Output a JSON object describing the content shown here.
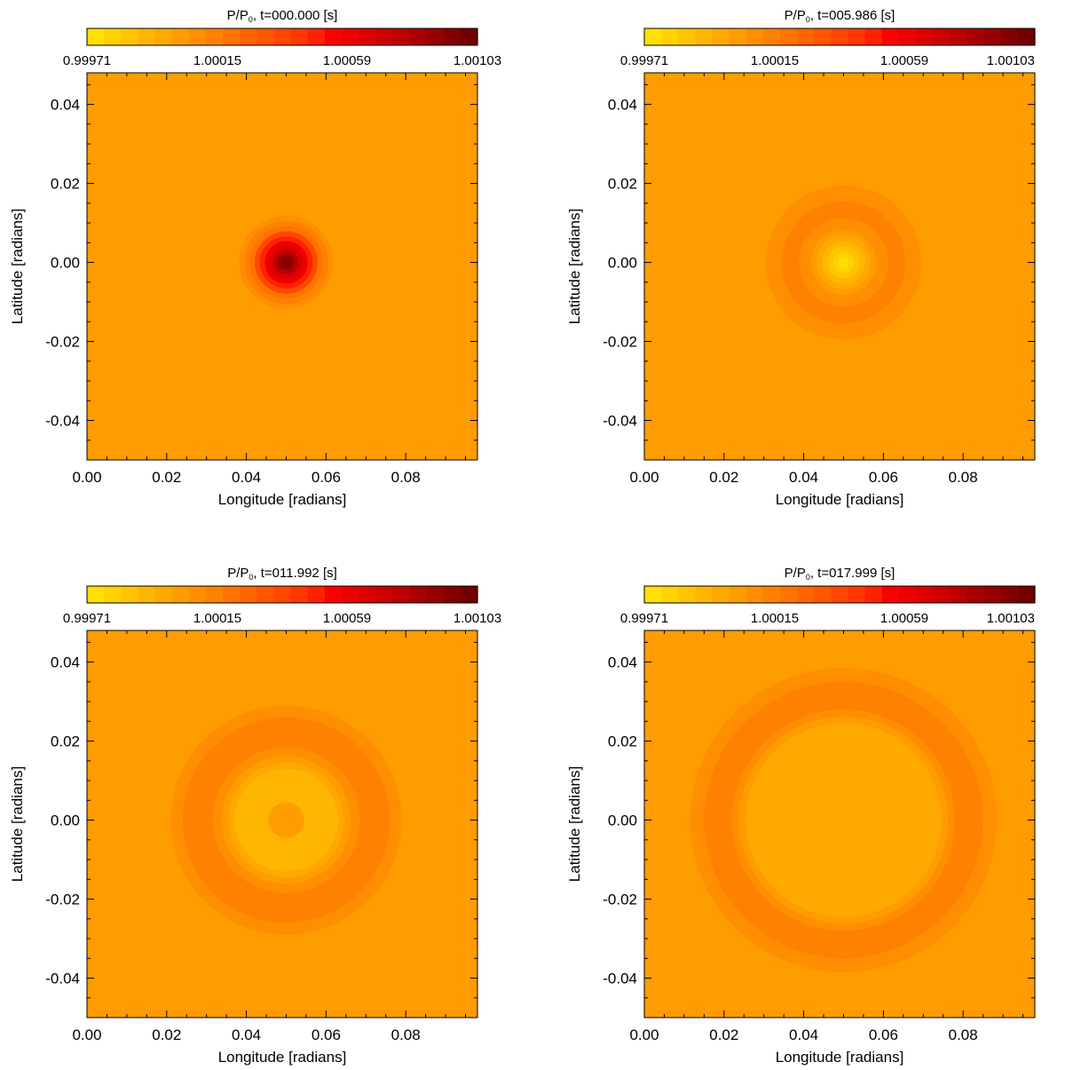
{
  "chart_data": [
    {
      "type": "heatmap",
      "title_prefix": "P/P",
      "title_sub": "0",
      "title_suffix": ", t=000.000  [s]",
      "xlabel": "Longitude [radians]",
      "ylabel": "Latitude [radians]",
      "xlim": [
        0.0,
        0.098
      ],
      "ylim": [
        -0.05,
        0.048
      ],
      "xticks": [
        "0.00",
        "0.02",
        "0.04",
        "0.06",
        "0.08"
      ],
      "xtick_values": [
        0.0,
        0.02,
        0.04,
        0.06,
        0.08
      ],
      "yticks": [
        "0.04",
        "0.02",
        "0.00",
        "-0.02",
        "-0.04"
      ],
      "ytick_values": [
        0.04,
        0.02,
        0.0,
        -0.02,
        -0.04
      ],
      "colorbar_labels": [
        "0.99971",
        "1.00015",
        "1.00059",
        "1.00103"
      ],
      "colorbar_range": [
        0.99971,
        1.00103
      ],
      "background_value": 1.00004,
      "center": [
        0.05,
        0.0
      ],
      "rings": [
        {
          "r": 0.0118,
          "value": 1.00009
        },
        {
          "r": 0.0105,
          "value": 1.00015
        },
        {
          "r": 0.0092,
          "value": 1.00021
        },
        {
          "r": 0.0079,
          "value": 1.00035
        },
        {
          "r": 0.0066,
          "value": 1.00048
        },
        {
          "r": 0.0054,
          "value": 1.00059
        },
        {
          "r": 0.0042,
          "value": 1.00068
        },
        {
          "r": 0.0031,
          "value": 1.00078
        },
        {
          "r": 0.0021,
          "value": 1.00088
        },
        {
          "r": 0.0012,
          "value": 1.00097
        }
      ]
    },
    {
      "type": "heatmap",
      "title_prefix": "P/P",
      "title_sub": "0",
      "title_suffix": ", t=005.986  [s]",
      "xlabel": "Longitude [radians]",
      "ylabel": "Latitude [radians]",
      "xlim": [
        0.0,
        0.098
      ],
      "ylim": [
        -0.05,
        0.048
      ],
      "xticks": [
        "0.00",
        "0.02",
        "0.04",
        "0.06",
        "0.08"
      ],
      "xtick_values": [
        0.0,
        0.02,
        0.04,
        0.06,
        0.08
      ],
      "yticks": [
        "0.04",
        "0.02",
        "0.00",
        "-0.02",
        "-0.04"
      ],
      "ytick_values": [
        0.04,
        0.02,
        0.0,
        -0.02,
        -0.04
      ],
      "colorbar_labels": [
        "0.99971",
        "1.00015",
        "1.00059",
        "1.00103"
      ],
      "colorbar_range": [
        0.99971,
        1.00103
      ],
      "background_value": 1.00004,
      "center": [
        0.05,
        0.0
      ],
      "rings": [
        {
          "r": 0.0195,
          "value": 1.00009
        },
        {
          "r": 0.0155,
          "value": 1.00015
        },
        {
          "r": 0.0112,
          "value": 1.00009
        },
        {
          "r": 0.0082,
          "value": 1.00004
        },
        {
          "r": 0.0068,
          "value": 0.99998
        },
        {
          "r": 0.0054,
          "value": 0.99993
        },
        {
          "r": 0.004,
          "value": 0.99987
        },
        {
          "r": 0.0026,
          "value": 0.99979
        },
        {
          "r": 0.0014,
          "value": 0.99974
        }
      ]
    },
    {
      "type": "heatmap",
      "title_prefix": "P/P",
      "title_sub": "0",
      "title_suffix": ", t=011.992  [s]",
      "xlabel": "Longitude [radians]",
      "ylabel": "Latitude [radians]",
      "xlim": [
        0.0,
        0.098
      ],
      "ylim": [
        -0.05,
        0.048
      ],
      "xticks": [
        "0.00",
        "0.02",
        "0.04",
        "0.06",
        "0.08"
      ],
      "xtick_values": [
        0.0,
        0.02,
        0.04,
        0.06,
        0.08
      ],
      "yticks": [
        "0.04",
        "0.02",
        "0.00",
        "-0.02",
        "-0.04"
      ],
      "ytick_values": [
        0.04,
        0.02,
        0.0,
        -0.02,
        -0.04
      ],
      "colorbar_labels": [
        "0.99971",
        "1.00015",
        "1.00059",
        "1.00103"
      ],
      "colorbar_range": [
        0.99971,
        1.00103
      ],
      "background_value": 1.00004,
      "center": [
        0.05,
        0.0
      ],
      "rings": [
        {
          "r": 0.029,
          "value": 1.00009
        },
        {
          "r": 0.026,
          "value": 1.00015
        },
        {
          "r": 0.0185,
          "value": 1.00009
        },
        {
          "r": 0.0162,
          "value": 1.00004
        },
        {
          "r": 0.0145,
          "value": 0.99998
        },
        {
          "r": 0.013,
          "value": 0.99993
        },
        {
          "r": 0.0045,
          "value": 1.00004
        }
      ]
    },
    {
      "type": "heatmap",
      "title_prefix": "P/P",
      "title_sub": "0",
      "title_suffix": ", t=017.999  [s]",
      "xlabel": "Longitude [radians]",
      "ylabel": "Latitude [radians]",
      "xlim": [
        0.0,
        0.098
      ],
      "ylim": [
        -0.05,
        0.048
      ],
      "xticks": [
        "0.00",
        "0.02",
        "0.04",
        "0.06",
        "0.08"
      ],
      "xtick_values": [
        0.0,
        0.02,
        0.04,
        0.06,
        0.08
      ],
      "yticks": [
        "0.04",
        "0.02",
        "0.00",
        "-0.02",
        "-0.04"
      ],
      "ytick_values": [
        0.04,
        0.02,
        0.0,
        -0.02,
        -0.04
      ],
      "colorbar_labels": [
        "0.99971",
        "1.00015",
        "1.00059",
        "1.00103"
      ],
      "colorbar_range": [
        0.99971,
        1.00103
      ],
      "background_value": 1.00004,
      "center": [
        0.05,
        0.0
      ],
      "rings": [
        {
          "r": 0.0385,
          "value": 1.00009
        },
        {
          "r": 0.035,
          "value": 1.00015
        },
        {
          "r": 0.028,
          "value": 1.00009
        },
        {
          "r": 0.0262,
          "value": 1.00004
        },
        {
          "r": 0.0245,
          "value": 0.99998
        }
      ]
    }
  ],
  "colorbar_colors": [
    "#ffe000",
    "#ffd200",
    "#ffc400",
    "#ffb600",
    "#ffa900",
    "#ff9c00",
    "#ff8e00",
    "#ff8100",
    "#ff7300",
    "#ff6500",
    "#ff5600",
    "#ff4700",
    "#ff3700",
    "#ff2200",
    "#ff0000",
    "#ee0000",
    "#dd0000",
    "#cc0000",
    "#bb0000",
    "#a80000",
    "#960000",
    "#840000",
    "#720000"
  ]
}
